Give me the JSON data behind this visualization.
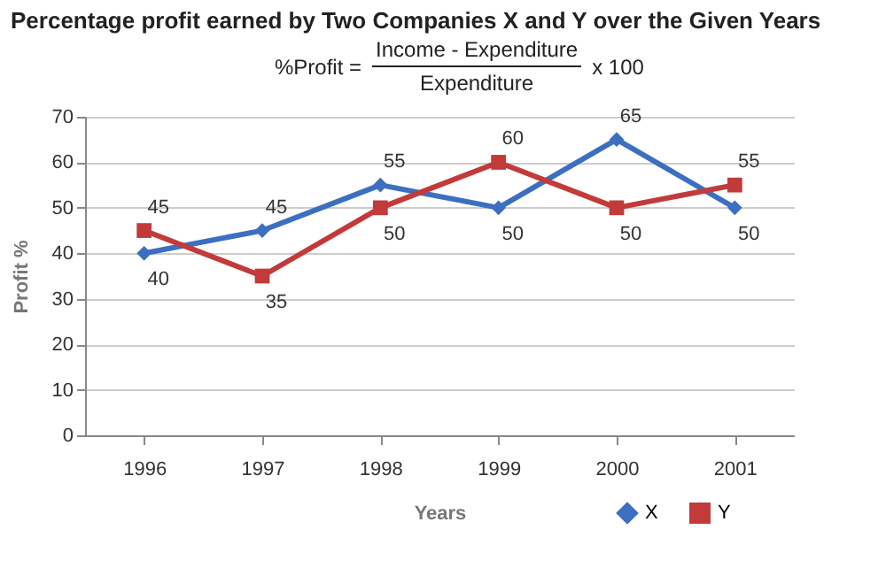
{
  "chart_data": {
    "type": "line",
    "title": "Percentage profit earned by Two Companies X and Y over the Given Years",
    "annotations": [
      "%Profit =",
      "Income - Expenditure",
      "Expenditure",
      "x 100"
    ],
    "xlabel": "Years",
    "ylabel": "Profit %",
    "categories": [
      "1996",
      "1997",
      "1998",
      "1999",
      "2000",
      "2001"
    ],
    "series": [
      {
        "name": "X",
        "color": "#3d6fc0",
        "marker": "diamond",
        "values": [
          40,
          45,
          55,
          50,
          65,
          50
        ]
      },
      {
        "name": "Y",
        "color": "#c23a3a",
        "marker": "square",
        "values": [
          45,
          35,
          50,
          60,
          50,
          55
        ]
      }
    ],
    "ylim": [
      0,
      70
    ],
    "yticks": [
      0,
      10,
      20,
      30,
      40,
      50,
      60,
      70
    ],
    "grid": "y",
    "legend": "bottom right",
    "data_labels": true
  }
}
